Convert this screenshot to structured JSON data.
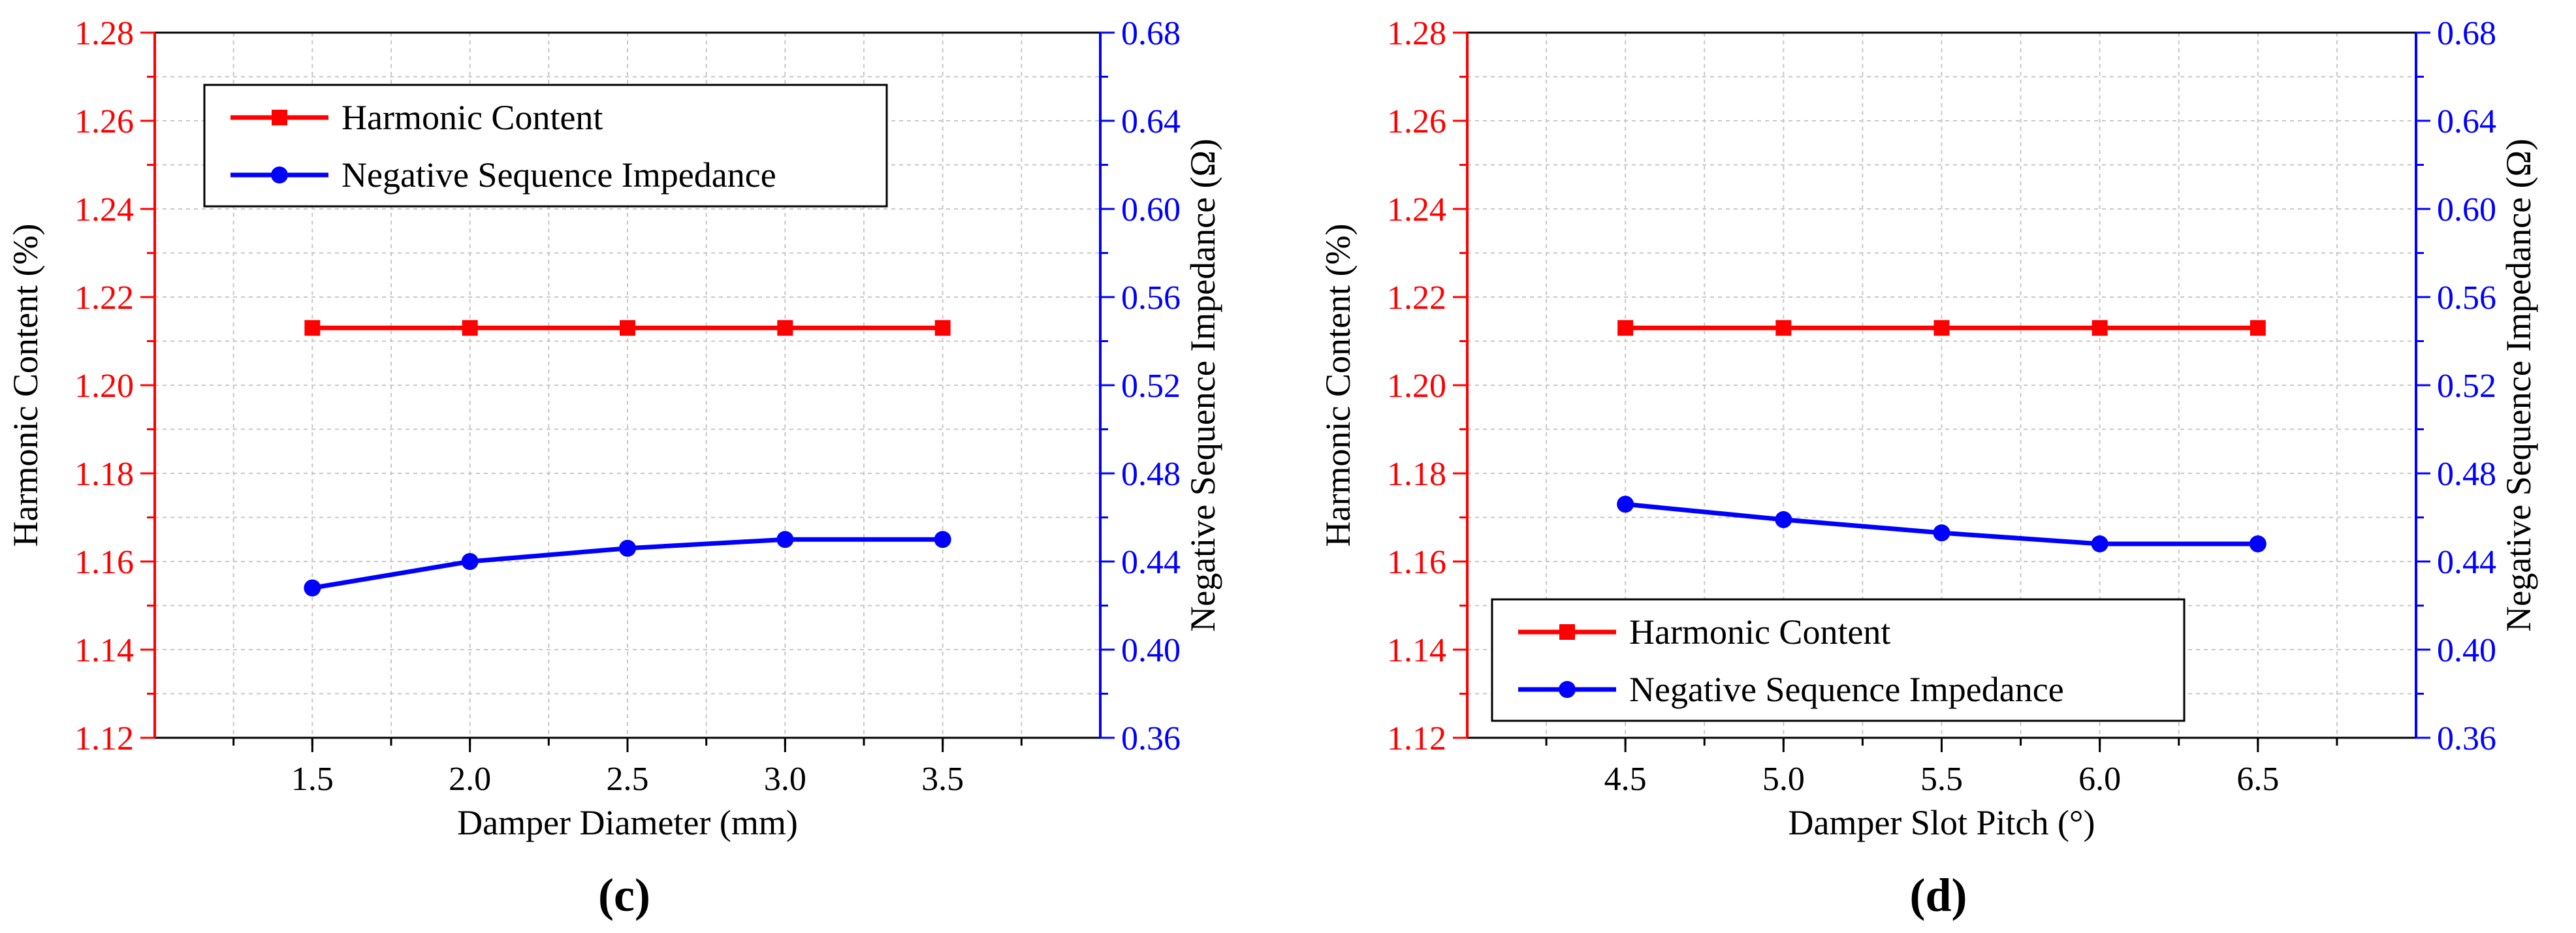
{
  "colors": {
    "left_axis": "#ff0000",
    "right_axis": "#0000ff",
    "series_red": "#ff0000",
    "series_blue": "#0000ff",
    "grid": "#c8c8c8",
    "frame": "#000000"
  },
  "chart_data": [
    {
      "type": "line",
      "panel_label": "(c)",
      "xlabel": "Damper Diameter (mm)",
      "ylabel_left": "Harmonic Content (%)",
      "ylabel_right": "Negative Sequence Impedance (Ω)",
      "x": [
        1.5,
        2.0,
        2.5,
        3.0,
        3.5
      ],
      "x_tick_labels": [
        "1.5",
        "2.0",
        "2.5",
        "3.0",
        "3.5"
      ],
      "xlim": [
        1.0,
        4.0
      ],
      "ylim_left": [
        1.12,
        1.28
      ],
      "ylim_right": [
        0.36,
        0.68
      ],
      "y_left_tick_labels": [
        "1.12",
        "1.14",
        "1.16",
        "1.18",
        "1.20",
        "1.22",
        "1.24",
        "1.26",
        "1.28"
      ],
      "y_right_tick_labels": [
        "0.36",
        "0.40",
        "0.44",
        "0.48",
        "0.52",
        "0.56",
        "0.60",
        "0.64",
        "0.68"
      ],
      "grid": true,
      "legend_position": "top-left",
      "series": [
        {
          "name": "Harmonic Content",
          "axis": "left",
          "marker": "square",
          "values": [
            1.213,
            1.213,
            1.213,
            1.213,
            1.213
          ]
        },
        {
          "name": "Negative Sequence Impedance",
          "axis": "right",
          "marker": "circle",
          "values": [
            0.428,
            0.44,
            0.446,
            0.45,
            0.45
          ]
        }
      ]
    },
    {
      "type": "line",
      "panel_label": "(d)",
      "xlabel": "Damper Slot Pitch (°)",
      "ylabel_left": "Harmonic Content (%)",
      "ylabel_right": "Negative Sequence Impedance (Ω)",
      "x": [
        4.5,
        5.0,
        5.5,
        6.0,
        6.5
      ],
      "x_tick_labels": [
        "4.5",
        "5.0",
        "5.5",
        "6.0",
        "6.5"
      ],
      "xlim": [
        4.0,
        7.0
      ],
      "ylim_left": [
        1.12,
        1.28
      ],
      "ylim_right": [
        0.36,
        0.68
      ],
      "y_left_tick_labels": [
        "1.12",
        "1.14",
        "1.16",
        "1.18",
        "1.20",
        "1.22",
        "1.24",
        "1.26",
        "1.28"
      ],
      "y_right_tick_labels": [
        "0.36",
        "0.40",
        "0.44",
        "0.48",
        "0.52",
        "0.56",
        "0.60",
        "0.64",
        "0.68"
      ],
      "grid": true,
      "legend_position": "bottom-left",
      "series": [
        {
          "name": "Harmonic Content",
          "axis": "left",
          "marker": "square",
          "values": [
            1.213,
            1.213,
            1.213,
            1.213,
            1.213
          ]
        },
        {
          "name": "Negative Sequence Impedance",
          "axis": "right",
          "marker": "circle",
          "values": [
            0.466,
            0.459,
            0.453,
            0.448,
            0.448
          ]
        }
      ]
    }
  ]
}
